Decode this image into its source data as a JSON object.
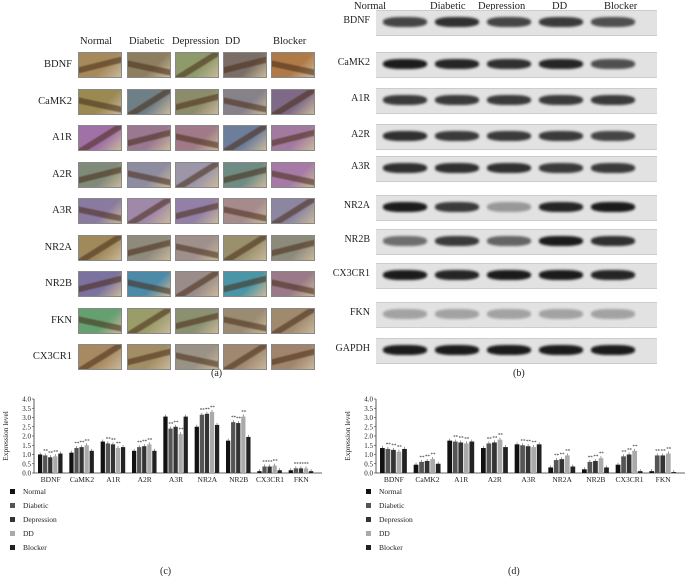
{
  "panel_a": {
    "label": "(a)",
    "columns": [
      "Normal",
      "Diabetic",
      "Depression",
      "DD",
      "Blocker"
    ],
    "rows": [
      "BDNF",
      "CaMK2",
      "A1R",
      "A2R",
      "A3R",
      "NR2A",
      "NR2B",
      "FKN",
      "CX3CR1"
    ],
    "tile_colors": [
      [
        "#a78a5c",
        "#8c7e5e",
        "#8e9a6a",
        "#7a6e66",
        "#b07a48"
      ],
      [
        "#9a8a52",
        "#6f7f86",
        "#8d8c6a",
        "#87828a",
        "#7e6a86"
      ],
      [
        "#a070a6",
        "#9a7892",
        "#a07a88",
        "#6d7e9a",
        "#a27aa0"
      ],
      [
        "#7f8a78",
        "#8d8ca0",
        "#9c96a8",
        "#6f8c84",
        "#a67aa6"
      ],
      [
        "#8a7aa0",
        "#a088a8",
        "#9280a8",
        "#a68a8c",
        "#8c86a0"
      ],
      [
        "#a08a5c",
        "#8e8a7c",
        "#a0908c",
        "#9a906c",
        "#8c8a7a"
      ],
      [
        "#7c72a0",
        "#4c8aa8",
        "#9a8c88",
        "#4a96a6",
        "#9a7a88"
      ],
      [
        "#64a070",
        "#9a9c6a",
        "#8a9070",
        "#9a8c72",
        "#a08a6e"
      ],
      [
        "#a88a62",
        "#a28e64",
        "#9a9284",
        "#a08870",
        "#a0856c"
      ]
    ]
  },
  "panel_b": {
    "label": "(b)",
    "columns": [
      "Normal",
      "Diabetic",
      "Depression",
      "DD",
      "Blocker"
    ],
    "rows": [
      "BDNF",
      "CaMK2",
      "A1R",
      "A2R",
      "A3R",
      "NR2A",
      "NR2B",
      "CX3CR1",
      "FKN",
      "GAPDH"
    ],
    "band_intensity": [
      [
        0.75,
        0.85,
        0.75,
        0.8,
        0.7
      ],
      [
        0.95,
        0.9,
        0.85,
        0.9,
        0.7
      ],
      [
        0.8,
        0.8,
        0.8,
        0.8,
        0.8
      ],
      [
        0.85,
        0.8,
        0.8,
        0.8,
        0.75
      ],
      [
        0.85,
        0.85,
        0.85,
        0.8,
        0.8
      ],
      [
        0.95,
        0.8,
        0.35,
        0.9,
        0.95
      ],
      [
        0.55,
        0.8,
        0.6,
        0.95,
        0.85
      ],
      [
        0.95,
        0.9,
        0.95,
        0.95,
        0.9
      ],
      [
        0.3,
        0.3,
        0.3,
        0.3,
        0.3
      ],
      [
        0.95,
        0.95,
        0.95,
        0.95,
        0.95
      ]
    ]
  },
  "panel_c": {
    "label": "(c)"
  },
  "panel_d": {
    "label": "(d)"
  },
  "chart_data": [
    {
      "type": "bar",
      "ylabel": "Expression level",
      "ylim": [
        0,
        4.0
      ],
      "yticks": [
        "0.0",
        "0.5",
        "1.0",
        "1.5",
        "2.0",
        "2.5",
        "3.0",
        "3.5",
        "4.0"
      ],
      "categories": [
        "BDNF",
        "CaMK2",
        "A1R",
        "A2R",
        "A3R",
        "NR2A",
        "NR2B",
        "CX3CR1",
        "FKN"
      ],
      "legend": [
        "Normal",
        "Diabetic",
        "Depression",
        "DD",
        "Blocker"
      ],
      "series": [
        {
          "name": "Normal",
          "color": "#111111",
          "values": [
            1.0,
            1.1,
            1.7,
            1.2,
            3.05,
            2.5,
            1.75,
            0.1,
            0.15
          ]
        },
        {
          "name": "Diabetic",
          "color": "#555555",
          "values": [
            0.95,
            1.35,
            1.6,
            1.4,
            2.4,
            3.15,
            2.75,
            0.35,
            0.25
          ]
        },
        {
          "name": "Depression",
          "color": "#333333",
          "values": [
            0.85,
            1.4,
            1.55,
            1.45,
            2.5,
            3.2,
            2.7,
            0.35,
            0.25
          ]
        },
        {
          "name": "DD",
          "color": "#aaaaaa",
          "values": [
            0.9,
            1.5,
            1.35,
            1.55,
            2.1,
            3.3,
            3.05,
            0.4,
            0.25
          ]
        },
        {
          "name": "Blocker",
          "color": "#222222",
          "values": [
            1.05,
            1.2,
            1.4,
            1.2,
            3.05,
            2.6,
            1.95,
            0.15,
            0.1
          ]
        }
      ],
      "annotation": "**"
    },
    {
      "type": "bar",
      "ylabel": "Expression level",
      "ylim": [
        0,
        4.0
      ],
      "yticks": [
        "0.0",
        "0.5",
        "1.0",
        "1.5",
        "2.0",
        "2.5",
        "3.0",
        "3.5",
        "4.0"
      ],
      "categories": [
        "BDNF",
        "CaMK2",
        "A1R",
        "A2R",
        "A3R",
        "NR2A",
        "NR2B",
        "CX3CR1",
        "FKN"
      ],
      "legend": [
        "Normal",
        "Diabetic",
        "Depression",
        "DD",
        "Blocker"
      ],
      "series": [
        {
          "name": "Normal",
          "color": "#111111",
          "values": [
            1.35,
            0.45,
            1.75,
            1.35,
            1.55,
            0.3,
            0.2,
            0.45,
            0.1
          ]
        },
        {
          "name": "Diabetic",
          "color": "#555555",
          "values": [
            1.3,
            0.6,
            1.7,
            1.6,
            1.5,
            0.7,
            0.6,
            0.9,
            0.95
          ]
        },
        {
          "name": "Depression",
          "color": "#333333",
          "values": [
            1.25,
            0.65,
            1.65,
            1.65,
            1.45,
            0.75,
            0.65,
            1.0,
            0.95
          ]
        },
        {
          "name": "DD",
          "color": "#aaaaaa",
          "values": [
            1.15,
            0.75,
            1.6,
            1.8,
            1.4,
            0.95,
            0.8,
            1.2,
            1.05
          ]
        },
        {
          "name": "Blocker",
          "color": "#222222",
          "values": [
            1.3,
            0.5,
            1.7,
            1.4,
            1.55,
            0.35,
            0.3,
            0.1,
            0.05
          ]
        }
      ],
      "annotation": "**"
    }
  ]
}
